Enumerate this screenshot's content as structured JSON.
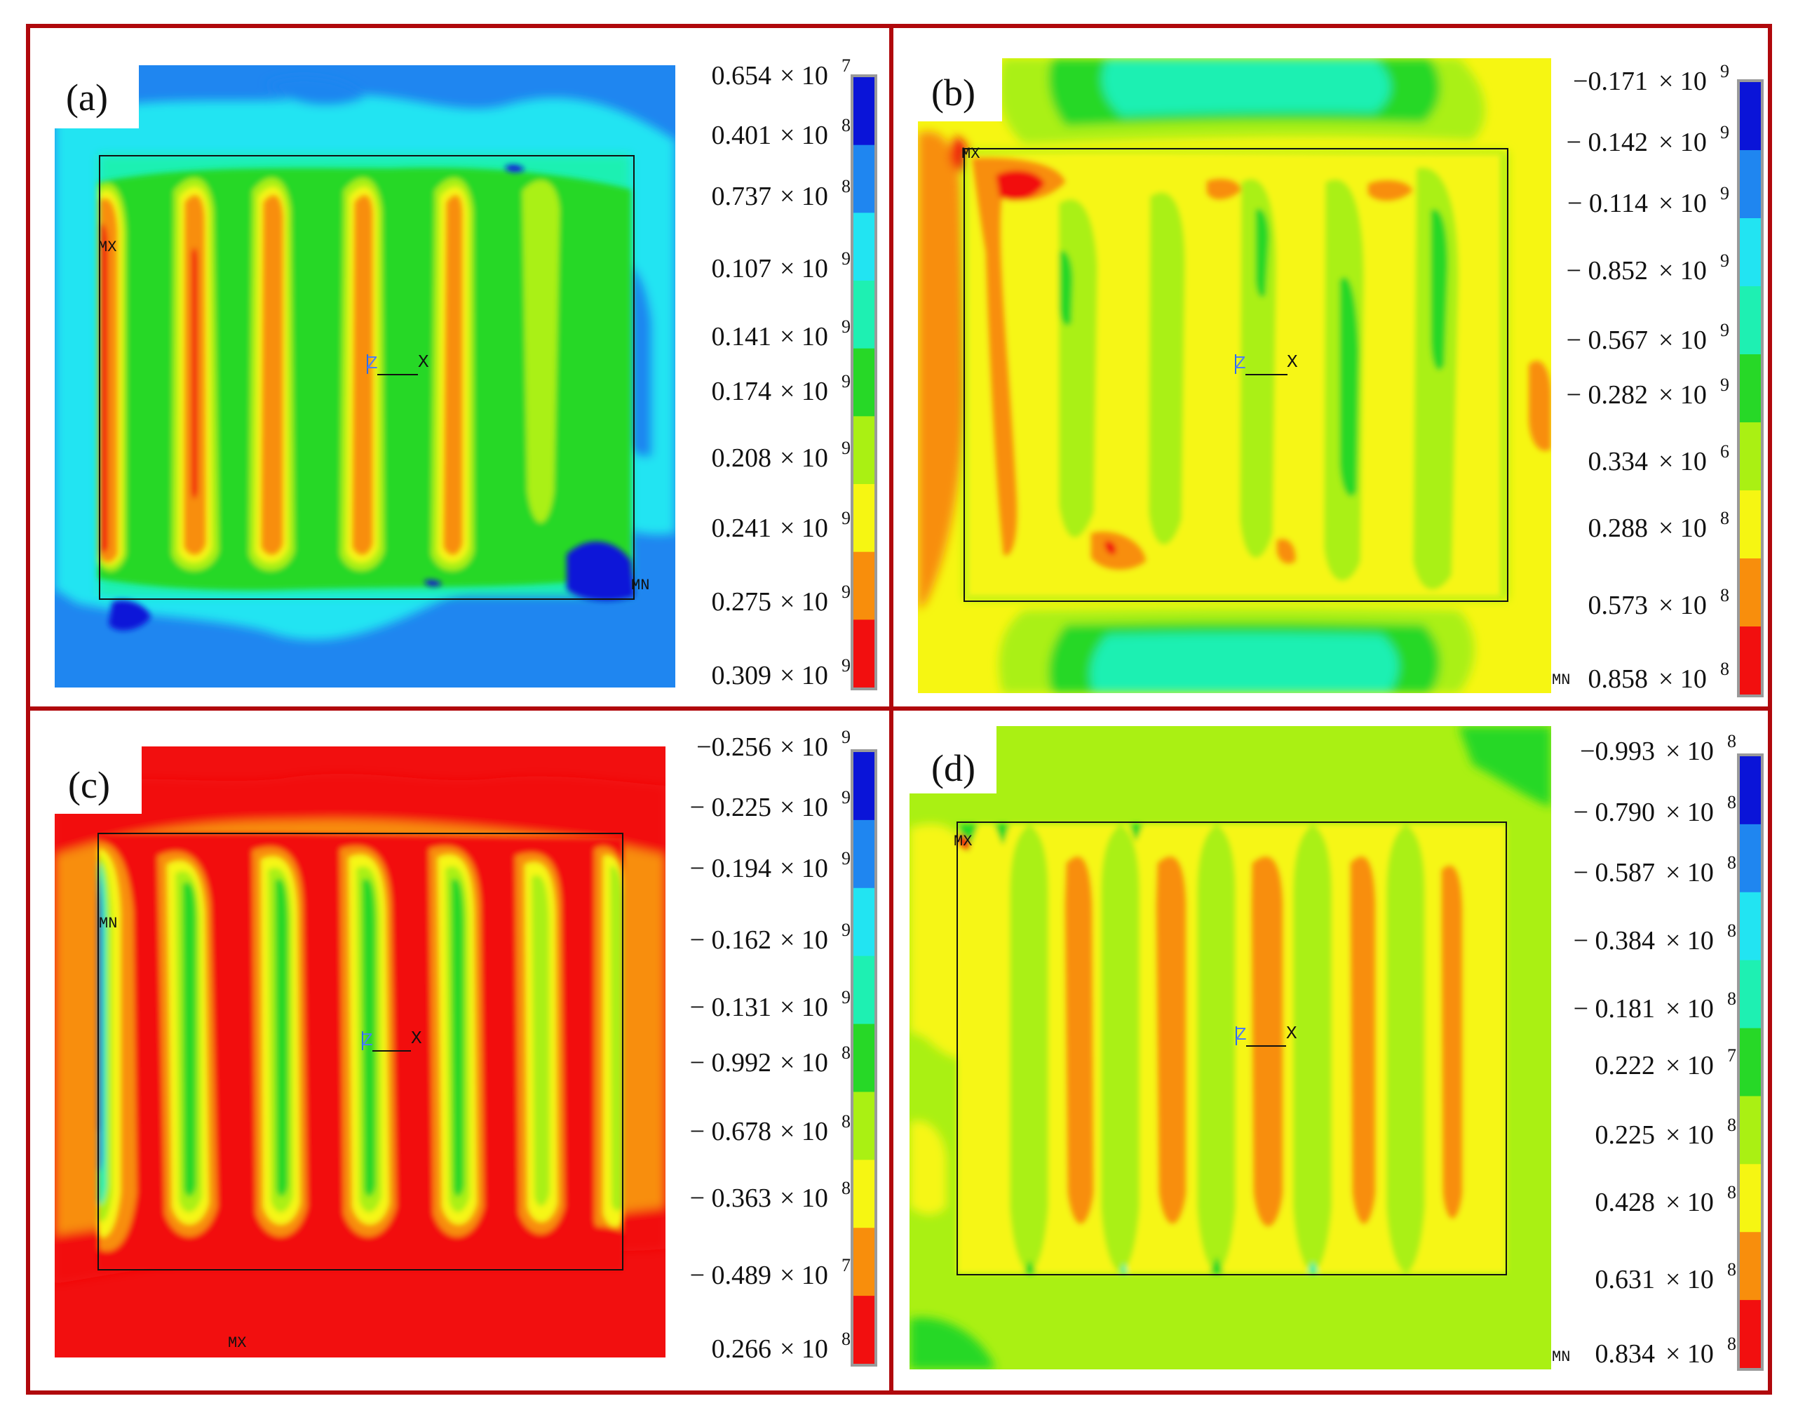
{
  "palette": [
    "#0a14d8",
    "#1f86f0",
    "#22e4f2",
    "#1ef0b2",
    "#27d827",
    "#aaf013",
    "#f6f612",
    "#f88e0c",
    "#f20f0f"
  ],
  "frame_color": "#b0080c",
  "panels": [
    {
      "id": "a",
      "label": "(a)",
      "markers": {
        "mx": "MX",
        "mn": "MN"
      },
      "axis": {
        "z": "Z",
        "x": "X"
      },
      "legend": {
        "base_values": [
          "0.654",
          "0.401",
          "0.737",
          "0.107",
          "0.141",
          "0.174",
          "0.208",
          "0.241",
          "0.275",
          "0.309"
        ],
        "exponents": [
          "7",
          "8",
          "8",
          "9",
          "9",
          "9",
          "9",
          "9",
          "9",
          "9"
        ]
      }
    },
    {
      "id": "b",
      "label": "(b)",
      "markers": {
        "mx": "MX",
        "mn": "MN"
      },
      "axis": {
        "z": "Z",
        "x": "X"
      },
      "legend": {
        "base_values": [
          "−0.171",
          "− 0.142",
          "− 0.114",
          "− 0.852",
          "− 0.567",
          "− 0.282",
          "0.334",
          "0.288",
          "0.573",
          "0.858"
        ],
        "exponents": [
          "9",
          "9",
          "9",
          "9",
          "9",
          "9",
          "6",
          "8",
          "8",
          "8"
        ]
      }
    },
    {
      "id": "c",
      "label": "(c)",
      "markers": {
        "mx": "MX",
        "mn": "MN"
      },
      "axis": {
        "z": "Z",
        "x": "X"
      },
      "legend": {
        "base_values": [
          "−0.256",
          "− 0.225",
          "− 0.194",
          "− 0.162",
          "− 0.131",
          "− 0.992",
          "− 0.678",
          "− 0.363",
          "− 0.489",
          "0.266"
        ],
        "exponents": [
          "9",
          "9",
          "9",
          "9",
          "9",
          "8",
          "8",
          "8",
          "7",
          "8"
        ]
      }
    },
    {
      "id": "d",
      "label": "(d)",
      "markers": {
        "mx": "MX",
        "mn": "MN"
      },
      "axis": {
        "z": "Z",
        "x": "X"
      },
      "legend": {
        "base_values": [
          "−0.993",
          "− 0.790",
          "− 0.587",
          "− 0.384",
          "− 0.181",
          "0.222",
          "0.225",
          "0.428",
          "0.631",
          "0.834"
        ],
        "exponents": [
          "8",
          "8",
          "8",
          "8",
          "8",
          "7",
          "8",
          "8",
          "8",
          "8"
        ]
      }
    }
  ],
  "times_label": "× 10"
}
